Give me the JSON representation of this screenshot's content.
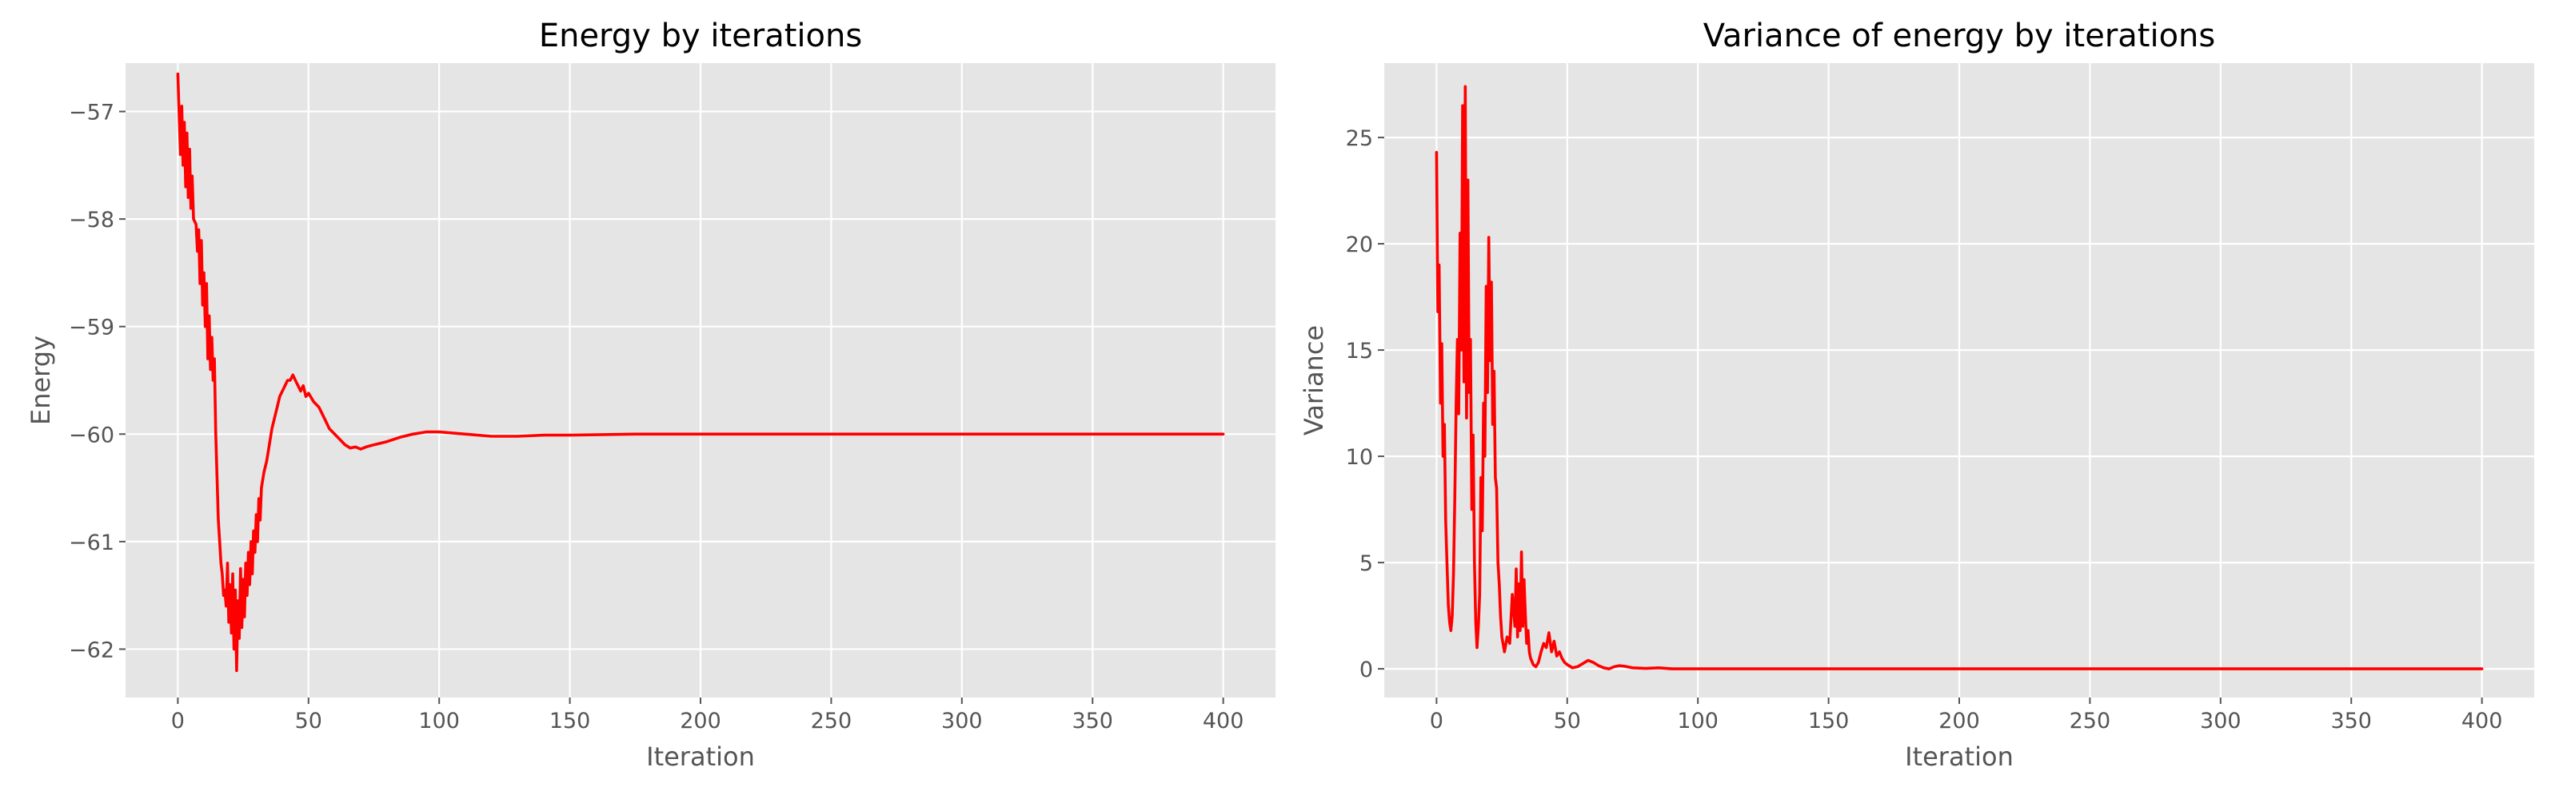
{
  "figure": {
    "background": "#ffffff",
    "plot_background": "#e5e5e5",
    "grid_color": "#ffffff",
    "line_color": "#ff0000"
  },
  "chart_data": [
    {
      "type": "line",
      "title": "Energy by iterations",
      "xlabel": "Iteration",
      "ylabel": "Energy",
      "xlim": [
        -20,
        420
      ],
      "ylim": [
        -62.45,
        -56.55
      ],
      "xticks": [
        0,
        50,
        100,
        150,
        200,
        250,
        300,
        350,
        400
      ],
      "xtick_labels": [
        "0",
        "50",
        "100",
        "150",
        "200",
        "250",
        "300",
        "350",
        "400"
      ],
      "yticks": [
        -62,
        -61,
        -60,
        -59,
        -58,
        -57
      ],
      "ytick_labels": [
        "−62",
        "−61",
        "−60",
        "−59",
        "−58",
        "−57"
      ],
      "grid": true,
      "legend": "none",
      "series": [
        {
          "color": "#ff0000",
          "x": [
            0,
            1,
            1.5,
            2,
            2.5,
            3,
            3.5,
            4,
            4.5,
            5,
            5.5,
            6,
            7,
            7.5,
            8,
            8.5,
            9,
            9.5,
            10,
            10.5,
            11,
            11.5,
            12,
            12.5,
            13,
            13.5,
            14,
            14.5,
            15,
            15.5,
            16,
            16.5,
            17,
            17.5,
            18,
            18.5,
            19,
            19.5,
            20,
            20.5,
            21,
            21.5,
            22,
            22.5,
            23,
            23.5,
            24,
            24.5,
            25,
            25.5,
            26,
            26.5,
            27,
            27.5,
            28,
            28.5,
            29,
            29.5,
            30,
            30.5,
            31,
            31.5,
            32,
            33,
            34,
            35,
            36,
            37,
            38,
            39,
            40,
            41,
            42,
            43,
            44,
            45,
            46,
            47,
            48,
            49,
            50,
            52,
            54,
            56,
            58,
            60,
            62,
            64,
            66,
            68,
            70,
            72,
            75,
            80,
            85,
            90,
            95,
            100,
            110,
            120,
            130,
            140,
            150,
            175,
            200,
            250,
            300,
            350,
            400
          ],
          "y": [
            -56.65,
            -57.4,
            -56.95,
            -57.5,
            -57.1,
            -57.7,
            -57.2,
            -57.8,
            -57.35,
            -57.9,
            -57.6,
            -58.0,
            -58.05,
            -58.3,
            -58.1,
            -58.6,
            -58.2,
            -58.8,
            -58.5,
            -59.0,
            -58.6,
            -59.3,
            -58.9,
            -59.4,
            -59.1,
            -59.5,
            -59.3,
            -60.0,
            -60.4,
            -60.8,
            -61.0,
            -61.2,
            -61.3,
            -61.5,
            -61.45,
            -61.6,
            -61.2,
            -61.75,
            -61.4,
            -61.85,
            -61.3,
            -62.0,
            -61.45,
            -62.2,
            -61.55,
            -61.9,
            -61.25,
            -61.8,
            -61.35,
            -61.7,
            -61.2,
            -61.5,
            -61.1,
            -61.4,
            -61.0,
            -61.3,
            -60.9,
            -61.1,
            -60.75,
            -61.0,
            -60.6,
            -60.8,
            -60.5,
            -60.35,
            -60.25,
            -60.1,
            -59.95,
            -59.85,
            -59.75,
            -59.65,
            -59.6,
            -59.55,
            -59.5,
            -59.5,
            -59.45,
            -59.5,
            -59.55,
            -59.6,
            -59.55,
            -59.65,
            -59.62,
            -59.7,
            -59.75,
            -59.85,
            -59.95,
            -60.0,
            -60.05,
            -60.1,
            -60.13,
            -60.12,
            -60.14,
            -60.12,
            -60.1,
            -60.07,
            -60.03,
            -60.0,
            -59.98,
            -59.98,
            -60.0,
            -60.02,
            -60.02,
            -60.01,
            -60.01,
            -60.0,
            -60.0,
            -60.0,
            -60.0,
            -60.0,
            -60.0
          ]
        }
      ]
    },
    {
      "type": "line",
      "title": "Variance of energy by iterations",
      "xlabel": "Iteration",
      "ylabel": "Variance",
      "xlim": [
        -20,
        420
      ],
      "ylim": [
        -1.35,
        28.5
      ],
      "xticks": [
        0,
        50,
        100,
        150,
        200,
        250,
        300,
        350,
        400
      ],
      "xtick_labels": [
        "0",
        "50",
        "100",
        "150",
        "200",
        "250",
        "300",
        "350",
        "400"
      ],
      "yticks": [
        0,
        5,
        10,
        15,
        20,
        25
      ],
      "ytick_labels": [
        "0",
        "5",
        "10",
        "15",
        "20",
        "25"
      ],
      "grid": true,
      "legend": "none",
      "series": [
        {
          "color": "#ff0000",
          "x": [
            0,
            0.5,
            1,
            1.5,
            2,
            2.5,
            3,
            3.5,
            4,
            4.5,
            5,
            5.5,
            6,
            6.5,
            7,
            7.5,
            8,
            8.5,
            9,
            9.5,
            10,
            10.5,
            11,
            11.5,
            12,
            12.5,
            13,
            13.5,
            14,
            14.5,
            15,
            15.5,
            16,
            16.5,
            17,
            17.5,
            18,
            18.5,
            19,
            19.5,
            20,
            20.5,
            21,
            21.5,
            22,
            22.5,
            23,
            23.5,
            24,
            24.5,
            25,
            26,
            27,
            28,
            29,
            30,
            30.5,
            31,
            31.5,
            32,
            32.5,
            33,
            33.5,
            34,
            34.5,
            35,
            35.5,
            36,
            37,
            38,
            39,
            40,
            41,
            42,
            43,
            44,
            45,
            46,
            47,
            48,
            49,
            50,
            52,
            54,
            56,
            58,
            60,
            62,
            64,
            66,
            68,
            70,
            72,
            75,
            80,
            85,
            90,
            100,
            150,
            200,
            250,
            300,
            350,
            400
          ],
          "y": [
            24.3,
            16.8,
            19.0,
            12.5,
            15.3,
            10.0,
            11.5,
            7.0,
            5.0,
            3.0,
            2.2,
            1.8,
            2.5,
            4.5,
            8.0,
            12.5,
            15.5,
            12.0,
            20.5,
            15.0,
            26.5,
            13.5,
            27.4,
            11.8,
            23.0,
            13.0,
            15.5,
            7.5,
            11.0,
            5.0,
            2.2,
            1.0,
            2.0,
            3.5,
            9.0,
            6.5,
            12.5,
            10.0,
            18.0,
            13.0,
            20.3,
            14.5,
            18.2,
            11.5,
            14.0,
            9.0,
            8.5,
            5.0,
            4.0,
            2.5,
            1.5,
            0.8,
            1.5,
            1.2,
            3.5,
            2.0,
            4.7,
            1.5,
            4.0,
            1.8,
            5.5,
            2.0,
            4.2,
            2.5,
            1.2,
            1.8,
            0.8,
            0.5,
            0.2,
            0.1,
            0.3,
            0.8,
            1.2,
            1.0,
            1.7,
            0.8,
            1.3,
            0.6,
            0.8,
            0.5,
            0.3,
            0.2,
            0.05,
            0.1,
            0.25,
            0.4,
            0.3,
            0.15,
            0.05,
            0.0,
            0.1,
            0.15,
            0.12,
            0.05,
            0.02,
            0.05,
            0.0,
            0.0,
            0.0,
            0.0,
            0.0,
            0.0,
            0.0,
            0.0
          ]
        }
      ]
    }
  ]
}
